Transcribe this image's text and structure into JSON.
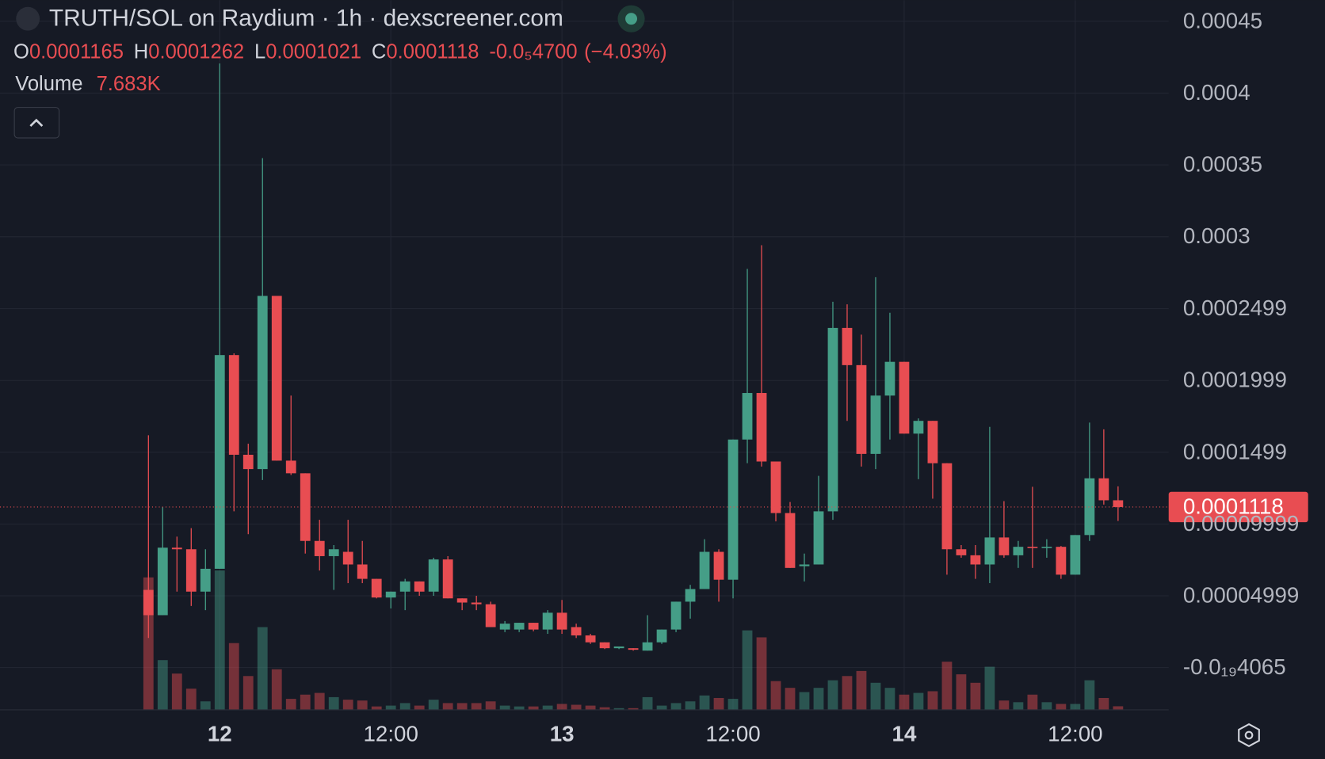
{
  "header": {
    "title": "TRUTH/SOL on Raydium · 1h · dexscreener.com",
    "ohlc_labels": [
      "O",
      "H",
      "L",
      "C"
    ],
    "change": {
      "value": -4.7e-06,
      "label": "-0.0₅4700"
    },
    "change_pct": {
      "value": -4.03,
      "label": "(−4.03%)"
    },
    "volume_title": "Volume",
    "last_volume_label": "7.683K"
  },
  "chart_data": {
    "type": "candlestick",
    "x": [
      -5,
      -4,
      -3,
      -2,
      -1,
      0,
      1,
      2,
      3,
      4,
      5,
      6,
      7,
      8,
      9,
      10,
      11,
      12,
      13,
      14,
      15,
      16,
      17,
      18,
      19,
      20,
      21,
      22,
      23,
      24,
      25,
      26,
      27,
      28,
      29,
      30,
      31,
      32,
      33,
      34,
      35,
      36,
      37,
      38,
      39,
      40,
      41,
      42,
      43,
      44,
      45,
      46,
      47,
      48,
      49,
      50,
      51,
      52,
      53,
      54,
      55,
      56,
      57,
      58,
      59,
      60,
      61,
      62,
      63
    ],
    "open": [
      5.41e-05,
      3.65e-05,
      8.35e-05,
      8.24e-05,
      5.29e-05,
      6.88e-05,
      0.0002176,
      0.0001482,
      0.0001382,
      0.0002588,
      0.0001441,
      0.0001353,
      8.82e-05,
      7.76e-05,
      8.06e-05,
      7.18e-05,
      6.18e-05,
      4.88e-05,
      5.29e-05,
      6e-05,
      5.29e-05,
      7.53e-05,
      4.82e-05,
      4.53e-05,
      4.41e-05,
      2.65e-05,
      2.65e-05,
      3.12e-05,
      2.65e-05,
      3.82e-05,
      2.82e-05,
      2.24e-05,
      1.76e-05,
      1.35e-05,
      1.35e-05,
      1.18e-05,
      1.76e-05,
      2.65e-05,
      4.59e-05,
      5.47e-05,
      8.06e-05,
      6.12e-05,
      0.0001588,
      0.0001912,
      0.0001435,
      0.0001076,
      7.06e-05,
      7.18e-05,
      0.0001088,
      0.0002365,
      0.0002106,
      0.0001488,
      0.0001894,
      0.0002129,
      0.0001629,
      0.0001718,
      0.0001423,
      8.24e-05,
      7.82e-05,
      7.18e-05,
      9.06e-05,
      7.82e-05,
      8.41e-05,
      8.35e-05,
      8.41e-05,
      6.47e-05,
      9.23e-05,
      0.0001318,
      0.0001165
    ],
    "high": [
      0.0001618,
      0.0001118,
      9.12e-05,
      9.71e-05,
      8.24e-05,
      0.0004206,
      0.0002188,
      0.0001559,
      0.0003547,
      0.0002588,
      0.0001894,
      0.0001353,
      0.0001029,
      8.53e-05,
      0.0001029,
      8.82e-05,
      6.18e-05,
      5.29e-05,
      6.18e-05,
      6e-05,
      7.65e-05,
      7.76e-05,
      4.82e-05,
      5e-05,
      4.59e-05,
      3.24e-05,
      3.12e-05,
      3.12e-05,
      4e-05,
      4.71e-05,
      3.06e-05,
      2.35e-05,
      1.76e-05,
      1.47e-05,
      1.35e-05,
      3.65e-05,
      2.65e-05,
      4.59e-05,
      5.76e-05,
      8.94e-05,
      8.24e-05,
      0.0001588,
      0.0002776,
      0.0002941,
      0.0001435,
      0.0001153,
      7.94e-05,
      0.0001335,
      0.0002547,
      0.0002529,
      0.0002318,
      0.0002718,
      0.0002471,
      0.0002129,
      0.0001735,
      0.0001718,
      0.0001423,
      8.53e-05,
      8.53e-05,
      0.0001676,
      0.0001159,
      8.82e-05,
      0.0001259,
      8.94e-05,
      8.47e-05,
      9.23e-05,
      0.0001706,
      0.0001659,
      0.0001262
    ],
    "low": [
      2.06e-05,
      3.65e-05,
      5.29e-05,
      4.29e-05,
      4e-05,
      6.88e-05,
      0.0001088,
      9.29e-05,
      0.0001306,
      0.0001441,
      0.0001341,
      7.94e-05,
      6.76e-05,
      5.41e-05,
      5.88e-05,
      5.88e-05,
      4.82e-05,
      4.12e-05,
      4e-05,
      5e-05,
      5e-05,
      4.82e-05,
      4e-05,
      4e-05,
      2.82e-05,
      2.47e-05,
      2.47e-05,
      2.53e-05,
      2.35e-05,
      2.35e-05,
      2.06e-05,
      1.65e-05,
      1.29e-05,
      1.29e-05,
      1.18e-05,
      1.18e-05,
      1.65e-05,
      2.47e-05,
      3.41e-05,
      5.47e-05,
      4.59e-05,
      4.82e-05,
      0.0001423,
      0.00014,
      0.0001018,
      6.94e-05,
      6e-05,
      7.18e-05,
      0.0001029,
      0.0001718,
      0.00014,
      0.0001382,
      0.0001588,
      0.0001629,
      0.0001312,
      0.0001176,
      6.47e-05,
      7.65e-05,
      6.18e-05,
      5.88e-05,
      7.65e-05,
      6.94e-05,
      6.94e-05,
      7.65e-05,
      6.18e-05,
      6.47e-05,
      8.82e-05,
      0.0001135,
      0.0001021
    ],
    "close": [
      3.65e-05,
      8.35e-05,
      8.24e-05,
      5.29e-05,
      6.88e-05,
      0.0002176,
      0.0001482,
      0.0001382,
      0.0002588,
      0.0001441,
      0.0001353,
      8.82e-05,
      7.76e-05,
      8.24e-05,
      7.18e-05,
      6.18e-05,
      4.88e-05,
      5.29e-05,
      6e-05,
      5.29e-05,
      7.53e-05,
      4.82e-05,
      4.53e-05,
      4.41e-05,
      2.82e-05,
      3.06e-05,
      3.12e-05,
      2.65e-05,
      3.82e-05,
      2.65e-05,
      2.24e-05,
      1.76e-05,
      1.35e-05,
      1.47e-05,
      1.24e-05,
      1.76e-05,
      2.65e-05,
      4.59e-05,
      5.47e-05,
      8.06e-05,
      6.12e-05,
      0.0001588,
      0.0001912,
      0.0001435,
      0.0001076,
      6.94e-05,
      7.18e-05,
      0.0001088,
      0.0002365,
      0.0002106,
      0.0001488,
      0.0001894,
      0.0002129,
      0.0001629,
      0.0001718,
      0.0001423,
      8.24e-05,
      7.82e-05,
      7.18e-05,
      9.06e-05,
      7.82e-05,
      8.41e-05,
      8.35e-05,
      8.41e-05,
      6.47e-05,
      9.23e-05,
      0.0001318,
      0.0001165,
      0.0001118
    ],
    "volume": [
      285000,
      107000,
      78000,
      45500,
      18200,
      300000,
      143600,
      72700,
      178000,
      87300,
      23600,
      32700,
      36400,
      27300,
      21800,
      20000,
      7300,
      9100,
      14500,
      9100,
      21800,
      14500,
      14500,
      14500,
      18200,
      9100,
      7300,
      7300,
      9100,
      12700,
      10900,
      9100,
      5500,
      3600,
      3600,
      27300,
      9100,
      14500,
      18200,
      30900,
      25500,
      23600,
      171000,
      156000,
      61800,
      47300,
      38200,
      47300,
      63600,
      72700,
      83600,
      58200,
      47300,
      32700,
      36400,
      40000,
      103600,
      76400,
      58200,
      92700,
      20000,
      16400,
      32700,
      16400,
      12700,
      12700,
      63600,
      25500,
      7683
    ],
    "up_color": "#459e87",
    "down_color": "#e84d52",
    "ylim": [
      -2.94e-05,
      0.0004647
    ],
    "yticks": [
      0.00045,
      0.0004,
      0.00035,
      0.0003,
      0.0002499,
      0.0001999,
      0.0001499,
      9.999e-05,
      4.999e-05,
      {
        "value": -4.065e-20,
        "label": "-0.0₁₉4065"
      }
    ],
    "xlim": [
      -15.41,
      66.55
    ],
    "xticks": [
      {
        "value": 0,
        "label": "12"
      },
      {
        "value": 12,
        "label": "12:00"
      },
      {
        "value": 24,
        "label": "13"
      },
      {
        "value": 36,
        "label": "12:00"
      },
      {
        "value": 48,
        "label": "14"
      },
      {
        "value": 60,
        "label": "12:00"
      }
    ],
    "volume_lim": [
      0,
      400000
    ],
    "grid": true
  }
}
